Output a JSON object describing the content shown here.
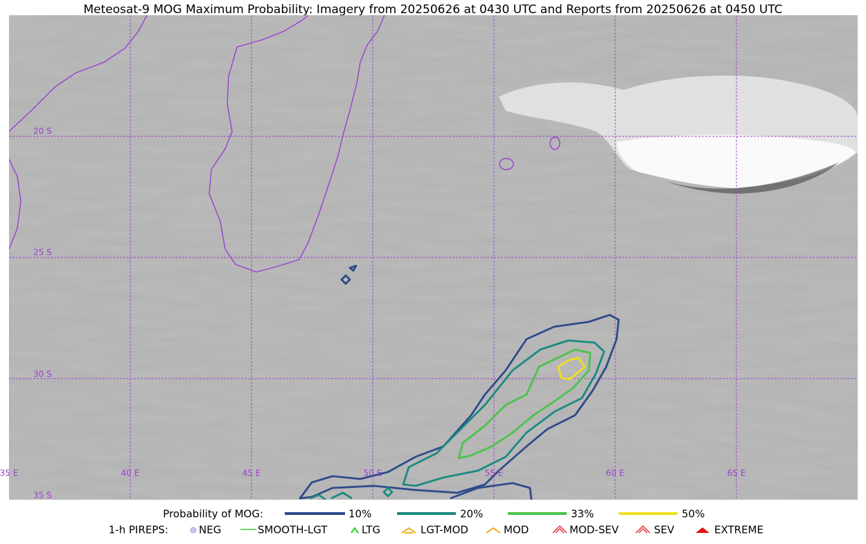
{
  "title": "Meteosat-9 MOG Maximum Probability: Imagery from 20250626 at 0430 UTC and Reports from 20250626 at 0450 UTC",
  "latitude_labels": [
    "20 S",
    "25 S",
    "30 S",
    "35 S"
  ],
  "longitude_labels": [
    "35 E",
    "40 E",
    "45 E",
    "50 E",
    "55 E",
    "60 E",
    "65 E"
  ],
  "mog_legend": {
    "title": "Probability of MOG:",
    "items": [
      {
        "label": "10%",
        "color": "#2e4a8a"
      },
      {
        "label": "20%",
        "color": "#1a8a80"
      },
      {
        "label": "33%",
        "color": "#4cc24c"
      },
      {
        "label": "50%",
        "color": "#f0e020"
      }
    ]
  },
  "pireps_legend": {
    "title": "1-h PIREPS:",
    "items": [
      "NEG",
      "SMOOTH-LGT",
      "LTG",
      "LGT-MOD",
      "MOD",
      "MOD-SEV",
      "SEV",
      "EXTREME"
    ]
  }
}
